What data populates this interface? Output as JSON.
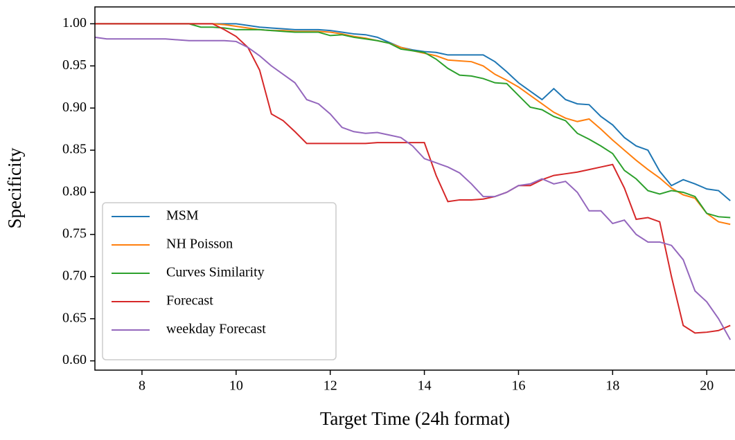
{
  "chart_data": {
    "type": "line",
    "xlabel": "Target Time (24h format)",
    "ylabel": "Specificity",
    "x": [
      7,
      7.25,
      7.5,
      7.75,
      8,
      8.25,
      8.5,
      8.75,
      9,
      9.25,
      9.5,
      9.75,
      10,
      10.25,
      10.5,
      10.75,
      11,
      11.25,
      11.5,
      11.75,
      12,
      12.25,
      12.5,
      12.75,
      13,
      13.25,
      13.5,
      13.75,
      14,
      14.25,
      14.5,
      14.75,
      15,
      15.25,
      15.5,
      15.75,
      16,
      16.25,
      16.5,
      16.75,
      17,
      17.25,
      17.5,
      17.75,
      18,
      18.25,
      18.5,
      18.75,
      19,
      19.25,
      19.5,
      19.75,
      20,
      20.25,
      20.5
    ],
    "series": [
      {
        "name": "MSM",
        "color": "#1f77b4",
        "values": [
          1,
          1,
          1,
          1,
          1,
          1,
          1,
          1,
          1,
          1,
          1,
          1,
          1.0,
          0.998,
          0.996,
          0.995,
          0.994,
          0.993,
          0.993,
          0.993,
          0.992,
          0.99,
          0.988,
          0.987,
          0.984,
          0.978,
          0.972,
          0.969,
          0.967,
          0.966,
          0.963,
          0.963,
          0.963,
          0.963,
          0.955,
          0.943,
          0.93,
          0.92,
          0.91,
          0.923,
          0.91,
          0.905,
          0.904,
          0.89,
          0.88,
          0.865,
          0.855,
          0.85,
          0.825,
          0.808,
          0.815,
          0.81,
          0.804,
          0.802,
          0.79
        ]
      },
      {
        "name": "NH Poisson",
        "color": "#ff7f0e",
        "values": [
          1,
          1,
          1,
          1,
          1,
          1,
          1,
          1,
          1,
          1,
          1,
          0.999,
          0.997,
          0.995,
          0.993,
          0.992,
          0.992,
          0.991,
          0.991,
          0.991,
          0.99,
          0.988,
          0.985,
          0.983,
          0.98,
          0.977,
          0.972,
          0.968,
          0.965,
          0.962,
          0.957,
          0.956,
          0.955,
          0.95,
          0.94,
          0.933,
          0.925,
          0.915,
          0.905,
          0.895,
          0.888,
          0.884,
          0.887,
          0.875,
          0.862,
          0.85,
          0.838,
          0.827,
          0.817,
          0.805,
          0.797,
          0.793,
          0.775,
          0.765,
          0.762
        ]
      },
      {
        "name": "Curves Similarity",
        "color": "#2ca02c",
        "values": [
          1,
          1,
          1,
          1,
          1,
          1,
          1,
          1,
          1,
          0.996,
          0.996,
          0.995,
          0.993,
          0.993,
          0.993,
          0.992,
          0.991,
          0.99,
          0.99,
          0.99,
          0.986,
          0.987,
          0.984,
          0.982,
          0.98,
          0.977,
          0.97,
          0.968,
          0.966,
          0.958,
          0.947,
          0.939,
          0.938,
          0.935,
          0.93,
          0.929,
          0.915,
          0.901,
          0.898,
          0.89,
          0.885,
          0.87,
          0.863,
          0.855,
          0.846,
          0.826,
          0.816,
          0.802,
          0.798,
          0.802,
          0.8,
          0.795,
          0.775,
          0.771,
          0.77
        ]
      },
      {
        "name": "Forecast",
        "color": "#d62728",
        "values": [
          1,
          1,
          1,
          1,
          1,
          1,
          1,
          1,
          1,
          1,
          1,
          0.993,
          0.985,
          0.972,
          0.945,
          0.893,
          0.885,
          0.872,
          0.858,
          0.858,
          0.858,
          0.858,
          0.858,
          0.858,
          0.859,
          0.859,
          0.859,
          0.859,
          0.859,
          0.82,
          0.789,
          0.791,
          0.791,
          0.792,
          0.795,
          0.8,
          0.808,
          0.808,
          0.815,
          0.82,
          0.822,
          0.824,
          0.827,
          0.83,
          0.833,
          0.805,
          0.768,
          0.77,
          0.765,
          0.7,
          0.642,
          0.633,
          0.634,
          0.636,
          0.642
        ]
      },
      {
        "name": "weekday Forecast",
        "color": "#9467bd",
        "values": [
          0.984,
          0.982,
          0.982,
          0.982,
          0.982,
          0.982,
          0.982,
          0.981,
          0.98,
          0.98,
          0.98,
          0.98,
          0.979,
          0.972,
          0.962,
          0.95,
          0.94,
          0.93,
          0.91,
          0.905,
          0.893,
          0.877,
          0.872,
          0.87,
          0.871,
          0.868,
          0.865,
          0.855,
          0.84,
          0.835,
          0.83,
          0.823,
          0.81,
          0.795,
          0.795,
          0.8,
          0.808,
          0.81,
          0.816,
          0.81,
          0.813,
          0.8,
          0.778,
          0.778,
          0.763,
          0.767,
          0.75,
          0.741,
          0.741,
          0.737,
          0.72,
          0.683,
          0.67,
          0.65,
          0.625
        ]
      }
    ],
    "xlim": [
      7,
      20.6
    ],
    "ylim": [
      0.589,
      1.02
    ],
    "xticks": [
      8,
      10,
      12,
      14,
      16,
      18,
      20
    ],
    "yticks": [
      {
        "value": 0.6,
        "label": "0.60"
      },
      {
        "value": 0.65,
        "label": "0.65"
      },
      {
        "value": 0.7,
        "label": "0.70"
      },
      {
        "value": 0.75,
        "label": "0.75"
      },
      {
        "value": 0.8,
        "label": "0.80"
      },
      {
        "value": 0.85,
        "label": "0.85"
      },
      {
        "value": 0.9,
        "label": "0.90"
      },
      {
        "value": 0.95,
        "label": "0.95"
      },
      {
        "value": 1.0,
        "label": "1.00"
      }
    ],
    "legend": "lower left"
  }
}
